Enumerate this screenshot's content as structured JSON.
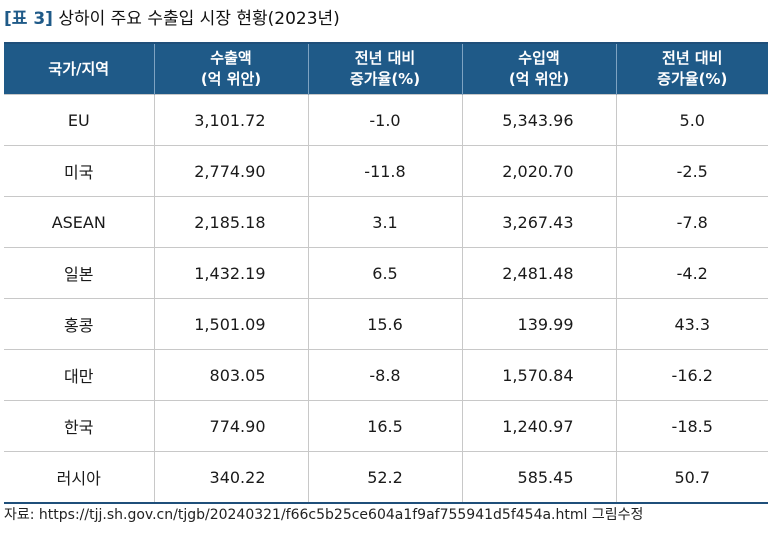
{
  "title": {
    "number": "[표 3]",
    "text": "상하이 주요 수출입 시장 현황(2023년)"
  },
  "table": {
    "headers": [
      {
        "line1": "국가/지역",
        "line2": ""
      },
      {
        "line1": "수출액",
        "line2": "(억 위안)"
      },
      {
        "line1": "전년 대비",
        "line2": "증가율(%)"
      },
      {
        "line1": "수입액",
        "line2": "(억 위안)"
      },
      {
        "line1": "전년 대비",
        "line2": "증가율(%)"
      }
    ],
    "rows": [
      [
        "EU",
        "3,101.72",
        "-1.0",
        "5,343.96",
        "5.0"
      ],
      [
        "미국",
        "2,774.90",
        "-11.8",
        "2,020.70",
        "-2.5"
      ],
      [
        "ASEAN",
        "2,185.18",
        "3.1",
        "3,267.43",
        "-7.8"
      ],
      [
        "일본",
        "1,432.19",
        "6.5",
        "2,481.48",
        "-4.2"
      ],
      [
        "홍콩",
        "1,501.09",
        "15.6",
        "139.99",
        "43.3"
      ],
      [
        "대만",
        "803.05",
        "-8.8",
        "1,570.84",
        "-16.2"
      ],
      [
        "한국",
        "774.90",
        "16.5",
        "1,240.97",
        "-18.5"
      ],
      [
        "러시아",
        "340.22",
        "52.2",
        "585.45",
        "50.7"
      ]
    ]
  },
  "source": "자료: https://tjj.sh.gov.cn/tjgb/20240321/f66c5b25ce604a1f9af755941d5f454a.html 그림수정"
}
